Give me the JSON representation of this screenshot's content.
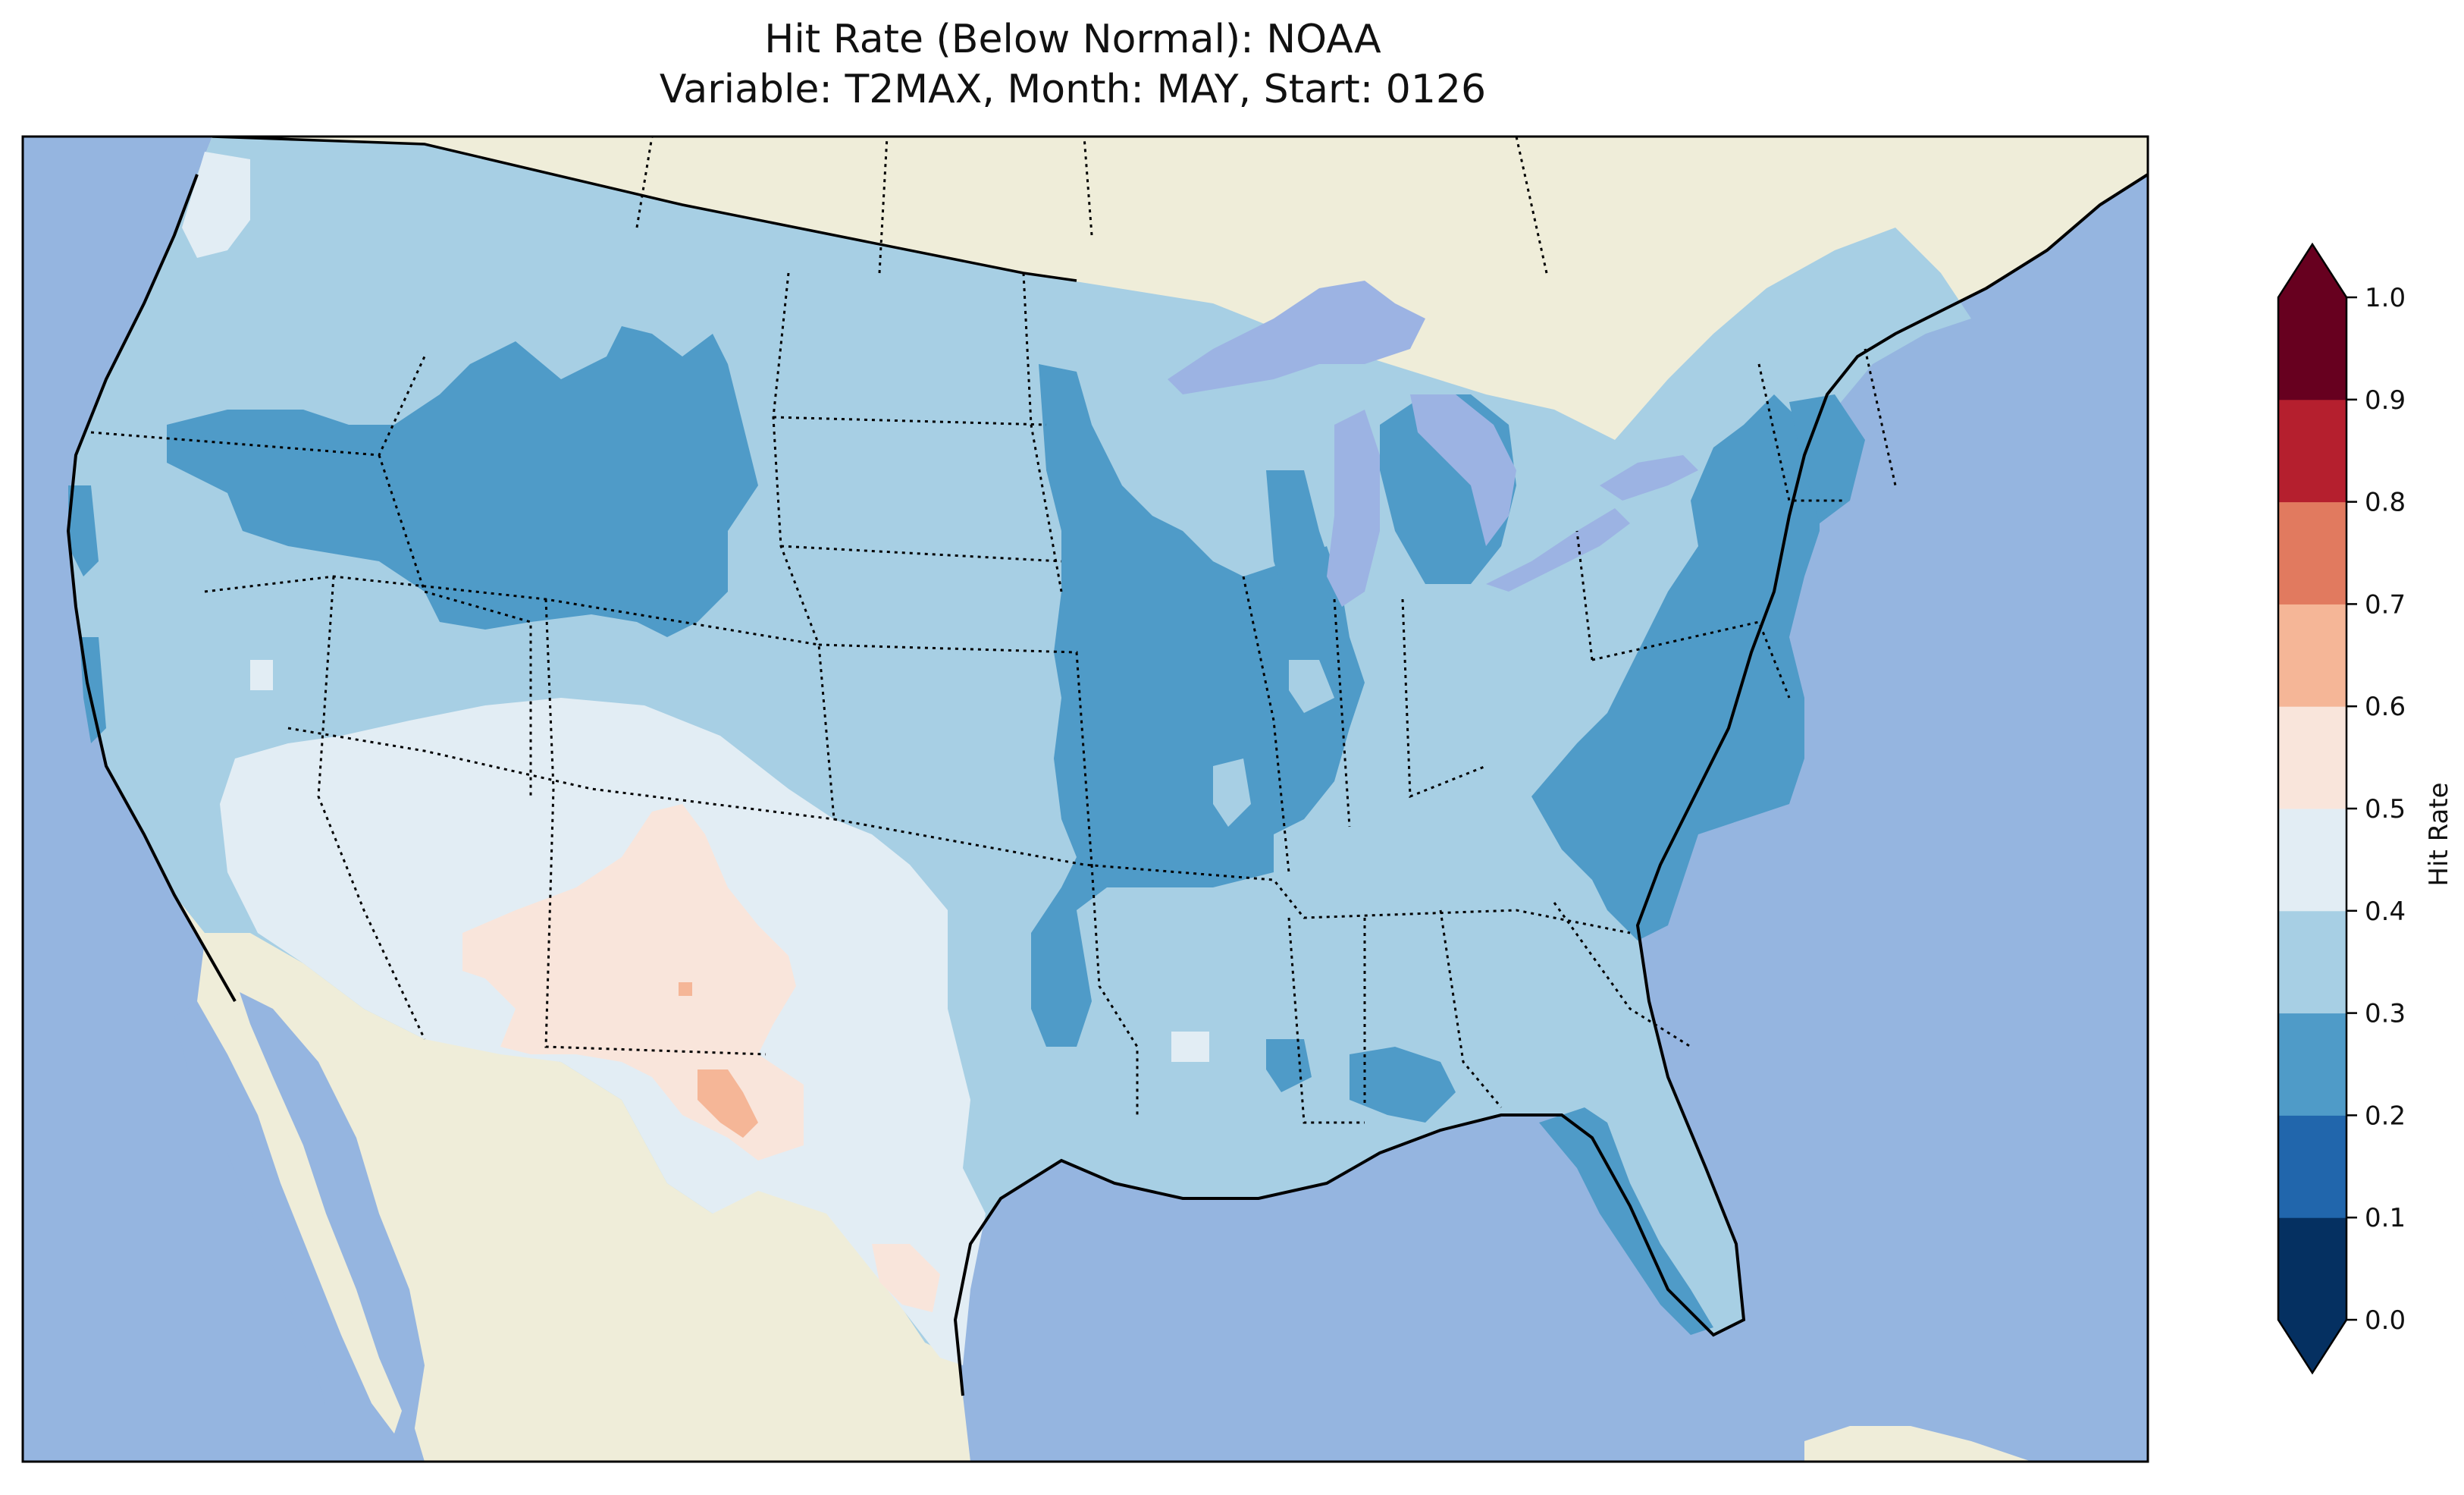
{
  "title": {
    "line1": "Hit Rate (Below Normal): NOAA",
    "line2": "Variable: T2MAX, Month: MAY, Start: 0126"
  },
  "colors": {
    "ocean": "#95b5e0",
    "land": "#efedd9",
    "lake": "#9cb3e3",
    "v0_1": "#053061",
    "v1_2": "#2166ac",
    "v2_3": "#4f9bc8",
    "v3_4": "#a7cfe4",
    "v4_5": "#e2edf4",
    "v5_6": "#f9e5db",
    "v6_7": "#f5b697",
    "v7_8": "#e17a5f",
    "v8_9": "#b51f2e",
    "v9_10": "#67001f"
  },
  "colorbar": {
    "label": "Hit Rate",
    "ticks": [
      "0.0",
      "0.1",
      "0.2",
      "0.3",
      "0.4",
      "0.5",
      "0.6",
      "0.7",
      "0.8",
      "0.9",
      "1.0"
    ],
    "bins": [
      "#053061",
      "#2166ac",
      "#4f9bc8",
      "#a7cfe4",
      "#e2edf4",
      "#f9e5db",
      "#f5b697",
      "#e17a5f",
      "#b51f2e",
      "#67001f"
    ],
    "extend": "both"
  },
  "map": {
    "region": "Contiguous United States",
    "fill_levels": {
      "west_coast_interior": "0.3-0.4",
      "northern_rockies": "0.2-0.3",
      "southwest": "0.4-0.5",
      "new_mexico_west_texas": "0.5-0.6",
      "west_texas_pocket": "0.6-0.7",
      "mississippi_valley": "0.2-0.3",
      "mid_atlantic": "0.2-0.3",
      "florida": "0.2-0.3",
      "southeast": "0.3-0.4",
      "texas_plains": "0.4-0.5"
    }
  }
}
